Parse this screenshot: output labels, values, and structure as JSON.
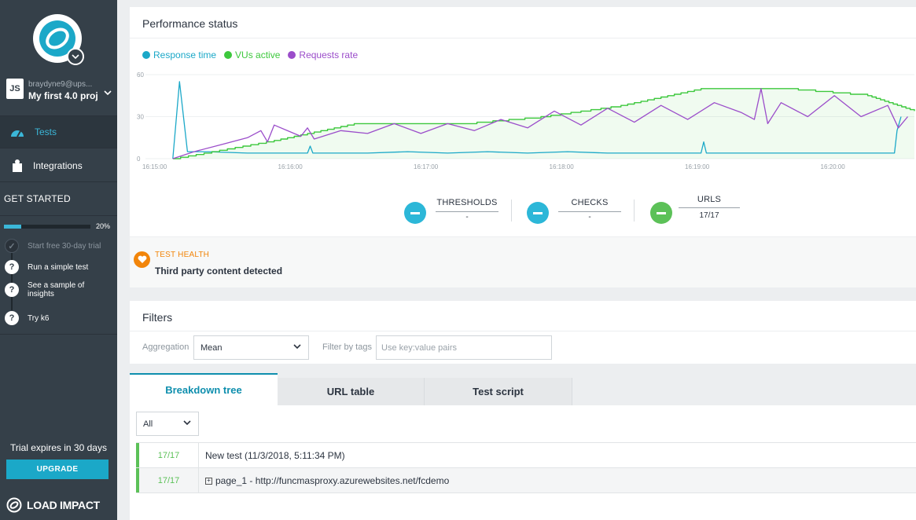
{
  "sidebar": {
    "user": "braydyne9@ups...",
    "project": "My first 4.0 proj",
    "project_badge": "JS",
    "nav": [
      {
        "label": "Tests",
        "icon": "speedometer-icon",
        "active": true
      },
      {
        "label": "Integrations",
        "icon": "puzzle-icon",
        "active": false
      }
    ],
    "get_started": "GET STARTED",
    "progress_pct": "20%",
    "progress_value": 0.2,
    "steps": [
      {
        "label": "Start free 30-day trial",
        "done": true
      },
      {
        "label": "Run a simple test",
        "done": false
      },
      {
        "label": "See a sample of insights",
        "done": false
      },
      {
        "label": "Try k6",
        "done": false
      }
    ],
    "trial": "Trial expires in 30 days",
    "upgrade": "UPGRADE",
    "brand": "LOAD IMPACT"
  },
  "performance": {
    "title": "Performance status",
    "legend": [
      {
        "label": "Response time",
        "color": "#1ba8c8"
      },
      {
        "label": "VUs active",
        "color": "#3dc83d"
      },
      {
        "label": "Requests rate",
        "color": "#9b4dca"
      }
    ],
    "metrics": [
      {
        "label": "THRESHOLDS",
        "value": "-",
        "color": "#2cb7d8"
      },
      {
        "label": "CHECKS",
        "value": "-",
        "color": "#2cb7d8"
      },
      {
        "label": "URLS",
        "value": "17/17",
        "color": "#5cc158"
      }
    ],
    "health_label": "TEST HEALTH",
    "health_text": "Third party content detected"
  },
  "chart_data": {
    "type": "line",
    "title": "",
    "xlabel": "",
    "ylabel": "",
    "ylim": [
      0,
      60
    ],
    "y_ticks": [
      "0",
      "30",
      "60"
    ],
    "x_ticks": [
      "16:15:00",
      "16:16:00",
      "16:17:00",
      "16:18:00",
      "16:19:00",
      "16:20:00"
    ],
    "grid": true,
    "legend_position": "top-left",
    "x_start_seconds_offset": 0,
    "series": [
      {
        "name": "Response time",
        "color": "#1ba8c8",
        "x": [
          4,
          9,
          15,
          30,
          60,
          90,
          105,
          107,
          109,
          120,
          150,
          180,
          210,
          240,
          270,
          300,
          330,
          360,
          390,
          400,
          402,
          404,
          420,
          450,
          480,
          530,
          545,
          547,
          550
        ],
        "y": [
          0,
          55,
          5,
          5,
          4,
          4,
          4,
          9,
          4,
          4,
          4,
          5,
          4,
          5,
          4,
          5,
          4,
          4,
          4,
          4,
          12,
          4,
          4,
          4,
          4,
          4,
          4,
          20,
          30
        ]
      },
      {
        "name": "VUs active",
        "color": "#3dc83d",
        "x": [
          4,
          80,
          140,
          220,
          280,
          340,
          400,
          460,
          525,
          560
        ],
        "y": [
          0,
          13,
          25,
          25,
          30,
          38,
          50,
          50,
          45,
          34
        ]
      },
      {
        "name": "Requests rate",
        "color": "#9b4dca",
        "x": [
          4,
          20,
          40,
          60,
          70,
          75,
          80,
          100,
          105,
          110,
          130,
          150,
          170,
          190,
          210,
          230,
          250,
          270,
          290,
          310,
          330,
          350,
          370,
          390,
          410,
          430,
          440,
          445,
          450,
          460,
          480,
          500,
          520,
          540,
          548,
          555
        ],
        "y": [
          0,
          5,
          10,
          15,
          20,
          12,
          24,
          16,
          22,
          14,
          20,
          18,
          25,
          18,
          25,
          20,
          28,
          22,
          34,
          24,
          36,
          26,
          38,
          28,
          40,
          33,
          28,
          50,
          25,
          40,
          30,
          45,
          30,
          38,
          22,
          30
        ]
      }
    ]
  },
  "filters": {
    "title": "Filters",
    "aggregation_label": "Aggregation",
    "aggregation_value": "Mean",
    "tags_label": "Filter by tags",
    "tags_placeholder": "Use key:value pairs"
  },
  "tabs": [
    {
      "label": "Breakdown tree",
      "active": true
    },
    {
      "label": "URL table",
      "active": false
    },
    {
      "label": "Test script",
      "active": false
    }
  ],
  "tree": {
    "filter_value": "All",
    "rows": [
      {
        "count": "17/17",
        "name": "New test (11/3/2018, 5:11:34 PM)",
        "expandable": false
      },
      {
        "count": "17/17",
        "name": "page_1 - http://funcmasproxy.azurewebsites.net/fcdemo",
        "expandable": true
      }
    ]
  }
}
